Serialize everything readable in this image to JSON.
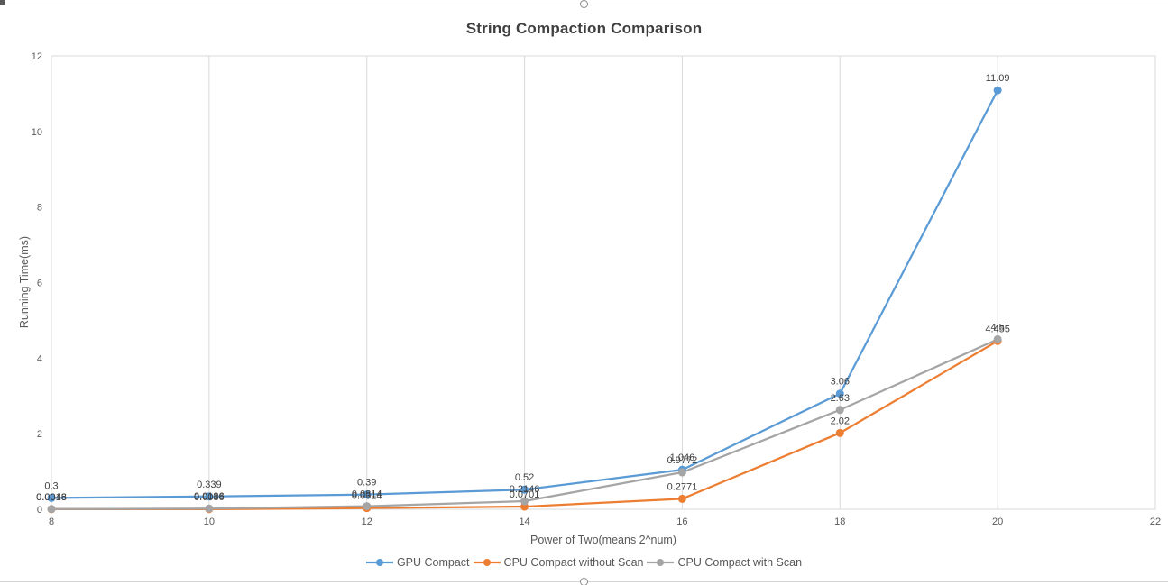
{
  "chart_data": {
    "type": "line",
    "title": "String Compaction Comparison",
    "xlabel": "Power of Two(means 2^num)",
    "ylabel": "Running Time(ms)",
    "x": [
      8,
      10,
      12,
      14,
      16,
      18,
      20
    ],
    "xlim": [
      8,
      22
    ],
    "ylim": [
      0,
      12
    ],
    "x_ticks": [
      8,
      10,
      12,
      14,
      16,
      18,
      20,
      22
    ],
    "y_ticks": [
      0,
      2,
      4,
      6,
      8,
      10,
      12
    ],
    "grid": "vertical-major-and-plot-border",
    "legend_position": "bottom",
    "marker": "circle",
    "series": [
      {
        "name": "GPU Compact",
        "color": "#5B9BD5",
        "values": [
          0.3,
          0.339,
          0.39,
          0.52,
          1.046,
          3.06,
          11.09
        ],
        "labels": [
          "0.3",
          "0.339",
          "0.39",
          "0.52",
          "1.046",
          "3.06",
          "11.09"
        ]
      },
      {
        "name": "CPU Compact without Scan",
        "color": "#ED7D31",
        "values": [
          0.0018,
          0.0036,
          0.0314,
          0.0701,
          0.2771,
          2.02,
          4.455
        ],
        "labels": [
          "0.0018",
          "0.0036",
          "0.0314",
          "0.0701",
          "0.2771",
          "2.02",
          "4.455"
        ]
      },
      {
        "name": "CPU Compact with Scan",
        "color": "#A5A5A5",
        "values": [
          0.0046,
          0.0186,
          0.0814,
          0.2146,
          0.9772,
          2.63,
          4.5
        ],
        "labels": [
          "0.0046",
          "0.0186",
          "0.0814",
          "0.2146",
          "0.9772",
          "2.63",
          "4.5"
        ]
      }
    ],
    "colors": {
      "gridline": "#D9D9D9",
      "tick_text": "#595959",
      "data_label_text": "#404040",
      "title_text": "#3F3F3F"
    }
  }
}
